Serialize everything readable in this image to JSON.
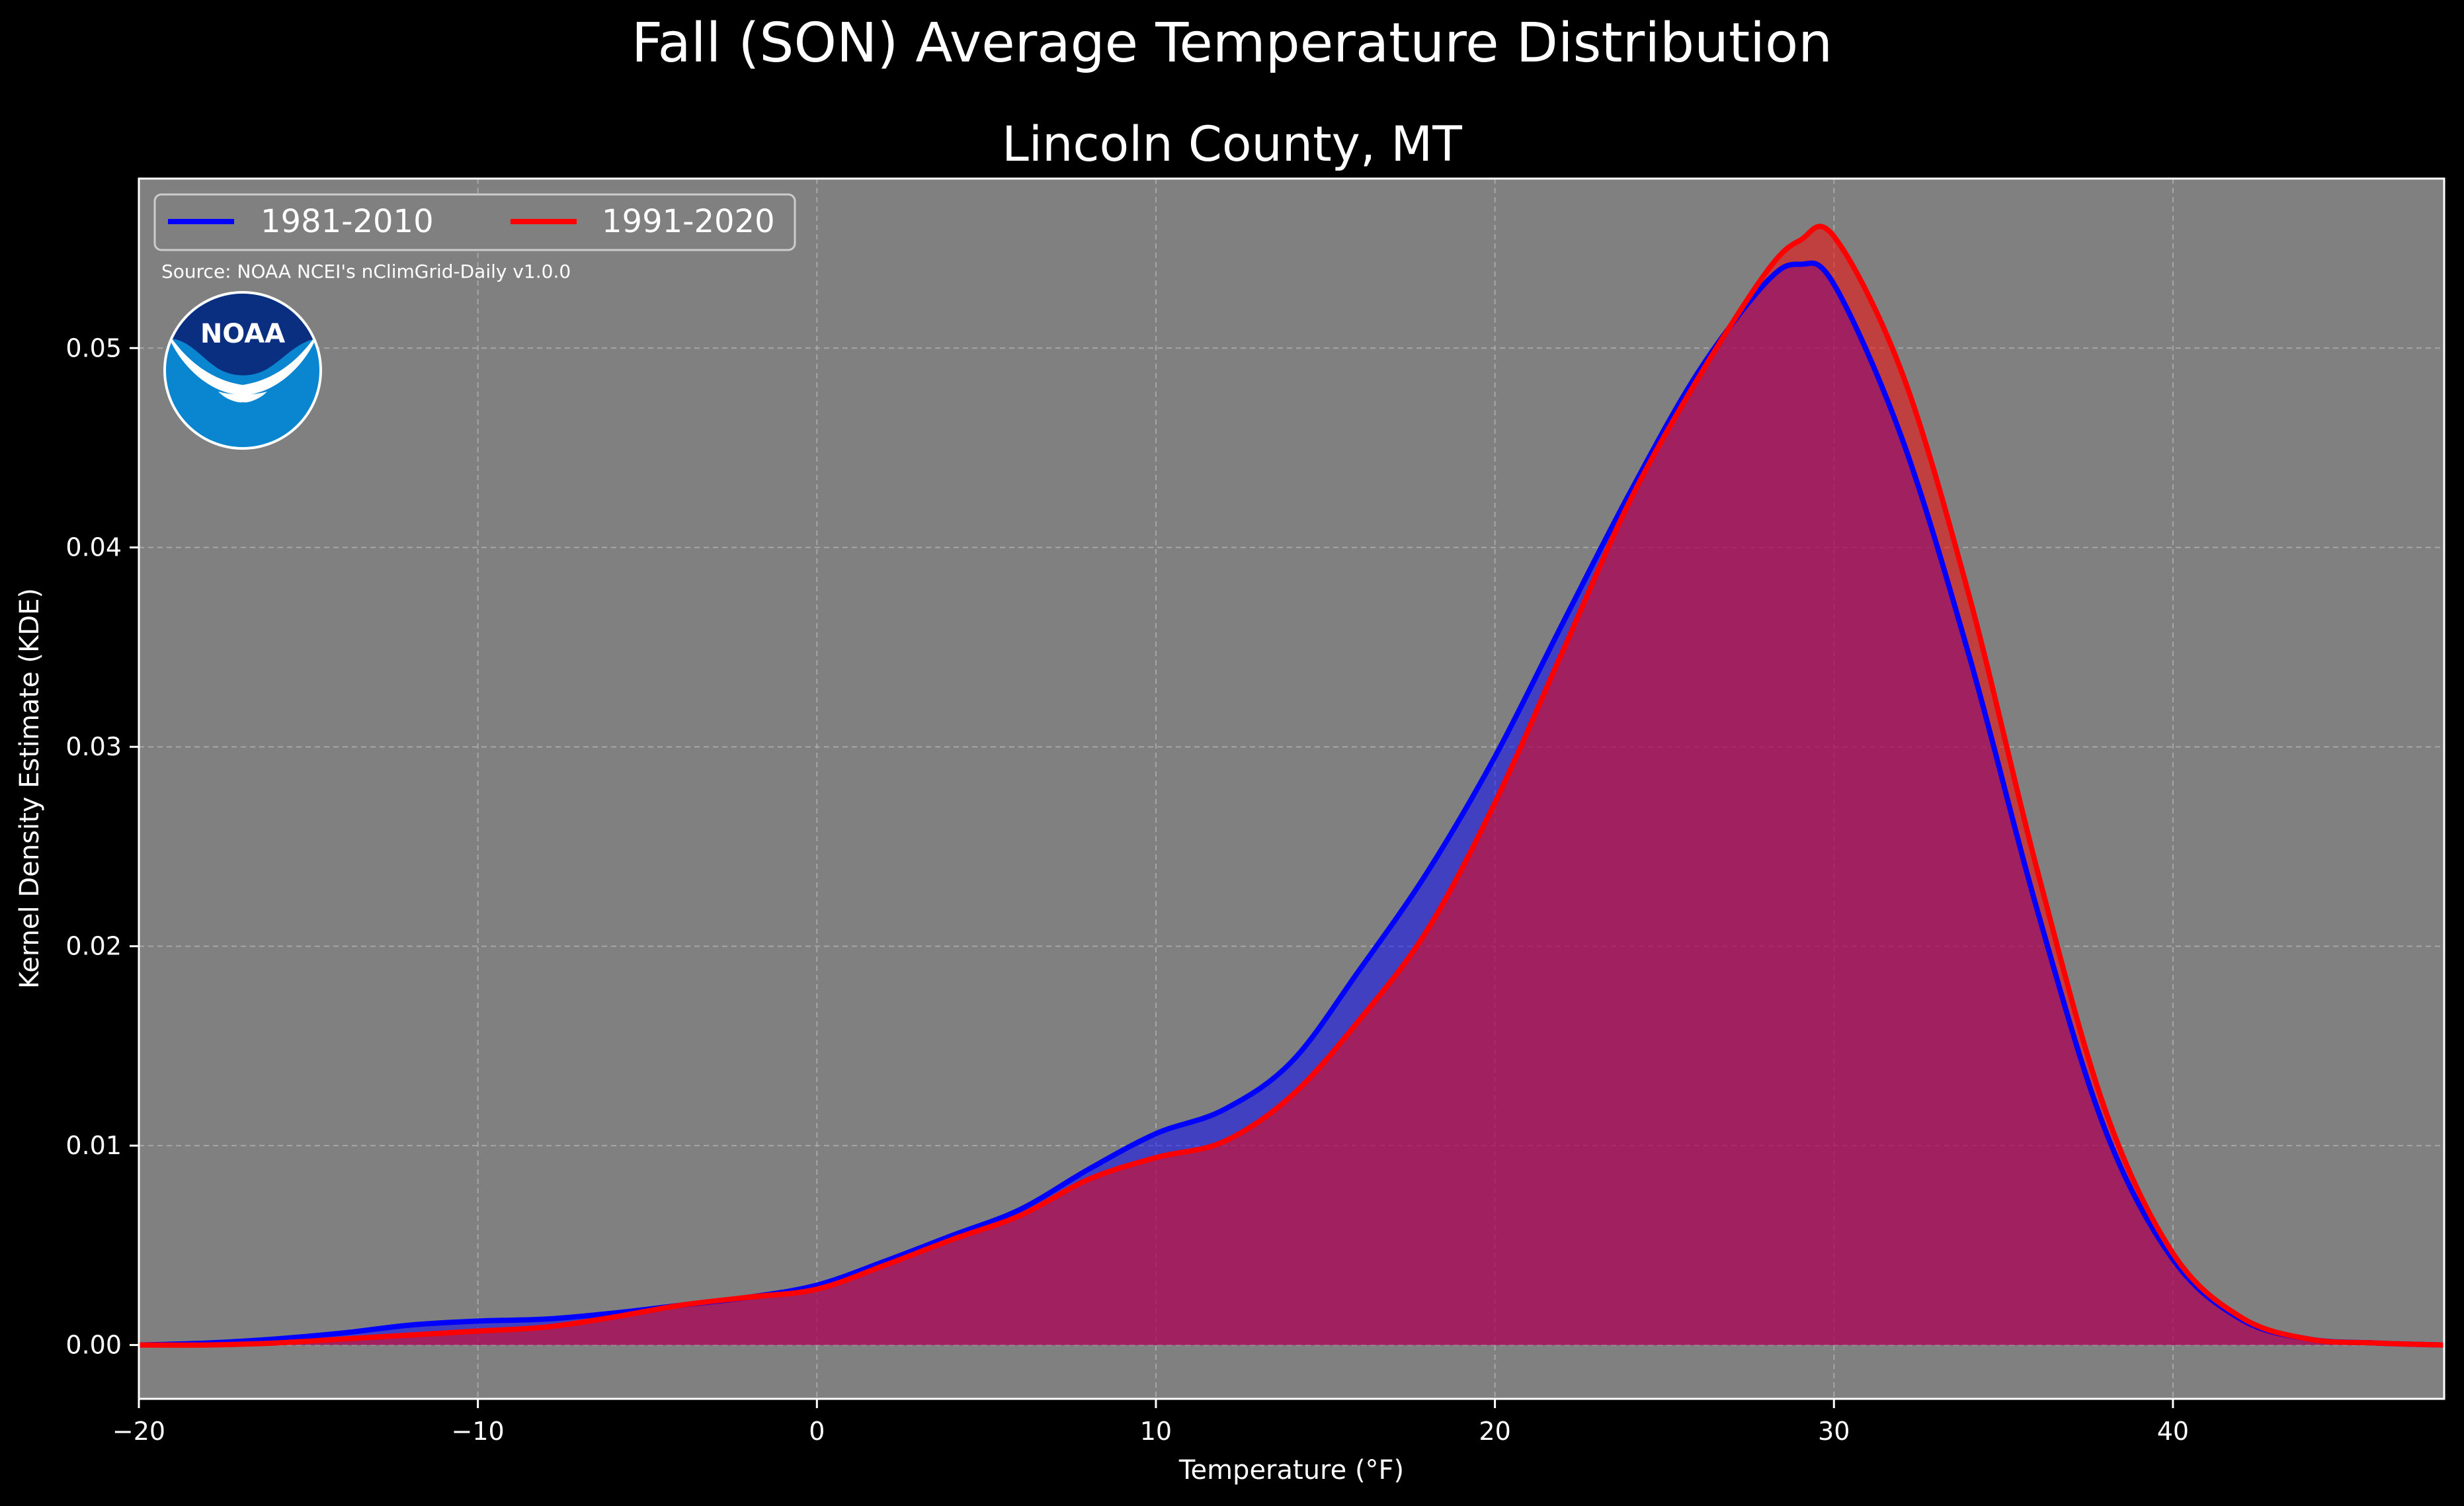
{
  "page": {
    "title": "Fall (SON) Average Temperature Distribution",
    "subtitle": "Lincoln County, MT",
    "source": "Source: NOAA NCEI's nClimGrid-Daily v1.0.0",
    "logo_text": "NOAA"
  },
  "colors": {
    "background": "#000000",
    "plot_background": "#808080",
    "series_1981": "#0000ff",
    "series_1991": "#ff0000",
    "overlap_fill": "#9e1e5e",
    "text": "#ffffff",
    "noaa_dark": "#0b2f80",
    "noaa_light": "#0a85d0"
  },
  "chart_data": {
    "type": "area",
    "title": "Lincoln County, MT",
    "xlabel": "Temperature ($^\\circ$F)",
    "xlabel_display": "Temperature (°F)",
    "ylabel": "Kernel Density Estimate (KDE)",
    "xlim": [
      -20,
      48
    ],
    "ylim": [
      -0.0027,
      0.0585
    ],
    "xticks": [
      -20,
      -10,
      0,
      10,
      20,
      30,
      40
    ],
    "xtick_labels": [
      "−20",
      "−10",
      "0",
      "10",
      "20",
      "30",
      "40"
    ],
    "yticks": [
      0.0,
      0.01,
      0.02,
      0.03,
      0.04,
      0.05
    ],
    "ytick_labels": [
      "0.00",
      "0.01",
      "0.02",
      "0.03",
      "0.04",
      "0.05"
    ],
    "grid": true,
    "legend_position": "top-left",
    "legend_columns": 2,
    "series": [
      {
        "name": "1981-2010",
        "color": "#0000ff",
        "x": [
          -20,
          -18,
          -16,
          -14,
          -12,
          -10,
          -8,
          -6,
          -4,
          -2,
          0,
          2,
          4,
          6,
          8,
          10,
          12,
          14,
          16,
          18,
          20,
          22,
          24,
          26,
          28,
          29,
          30,
          32,
          34,
          36,
          38,
          40,
          42,
          44,
          46,
          48
        ],
        "y": [
          0.0,
          0.0001,
          0.0003,
          0.0006,
          0.001,
          0.0012,
          0.0013,
          0.0016,
          0.002,
          0.0024,
          0.003,
          0.0042,
          0.0055,
          0.0068,
          0.0088,
          0.0106,
          0.0118,
          0.0142,
          0.0188,
          0.0237,
          0.0295,
          0.0362,
          0.0428,
          0.0488,
          0.0533,
          0.0542,
          0.0532,
          0.0455,
          0.0345,
          0.0218,
          0.0108,
          0.0043,
          0.0013,
          0.0003,
          0.0001,
          0.0
        ]
      },
      {
        "name": "1991-2020",
        "color": "#ff0000",
        "x": [
          -20,
          -18,
          -16,
          -14,
          -12,
          -10,
          -8,
          -6,
          -4,
          -2,
          0,
          2,
          4,
          6,
          8,
          10,
          12,
          14,
          16,
          18,
          20,
          22,
          24,
          26,
          28,
          29,
          30,
          32,
          34,
          36,
          38,
          40,
          42,
          44,
          46,
          48
        ],
        "y": [
          0.0,
          0.0,
          0.0001,
          0.0003,
          0.0005,
          0.0007,
          0.0009,
          0.0014,
          0.002,
          0.0024,
          0.0028,
          0.004,
          0.0053,
          0.0065,
          0.0083,
          0.0094,
          0.0102,
          0.0125,
          0.0163,
          0.0208,
          0.0272,
          0.0348,
          0.0424,
          0.0485,
          0.0538,
          0.0554,
          0.0556,
          0.0488,
          0.0375,
          0.0238,
          0.0118,
          0.0046,
          0.0014,
          0.0003,
          0.0001,
          0.0
        ]
      }
    ]
  }
}
